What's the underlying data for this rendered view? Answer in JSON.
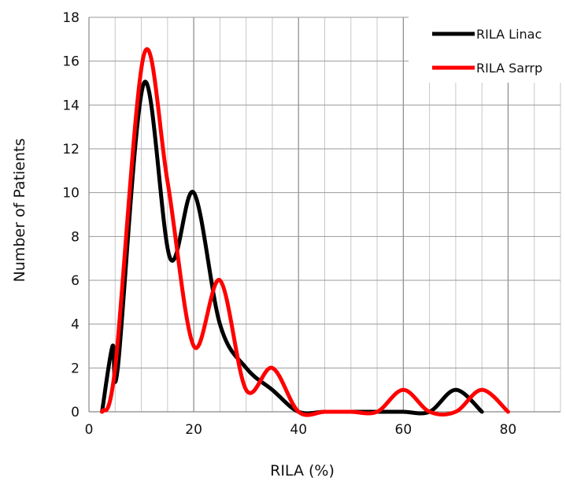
{
  "chart_data": {
    "type": "line",
    "title": "",
    "xlabel": "RILA (%)",
    "ylabel": "Number of Patients",
    "xlim": [
      0,
      90
    ],
    "ylim": [
      0,
      18
    ],
    "x_ticks": [
      0,
      20,
      40,
      60,
      80
    ],
    "y_ticks": [
      0,
      2,
      4,
      6,
      8,
      10,
      12,
      14,
      16,
      18
    ],
    "x_minor_step": 5,
    "y_minor_step": 2,
    "grid": true,
    "legend_position": "top-right",
    "series": [
      {
        "name": "RILA Linac",
        "color": "#000000",
        "x": [
          2.5,
          4.5,
          5.5,
          10.5,
          15.5,
          20,
          25,
          30,
          35,
          40,
          45,
          50,
          55,
          60,
          65,
          70,
          75
        ],
        "y": [
          0,
          3,
          2,
          15,
          7,
          10,
          4,
          2,
          1,
          0,
          0,
          0,
          0,
          0,
          0,
          1,
          0
        ]
      },
      {
        "name": "RILA Sarrp",
        "color": "#ff0000",
        "x": [
          2.5,
          5,
          10.5,
          15,
          20,
          25,
          30,
          35,
          40,
          45,
          50,
          55,
          60,
          65,
          70,
          75,
          80
        ],
        "y": [
          0,
          2,
          16.3,
          10.5,
          3,
          6,
          1,
          2,
          0,
          0,
          0,
          0,
          1,
          0,
          0,
          1,
          0
        ]
      }
    ]
  }
}
